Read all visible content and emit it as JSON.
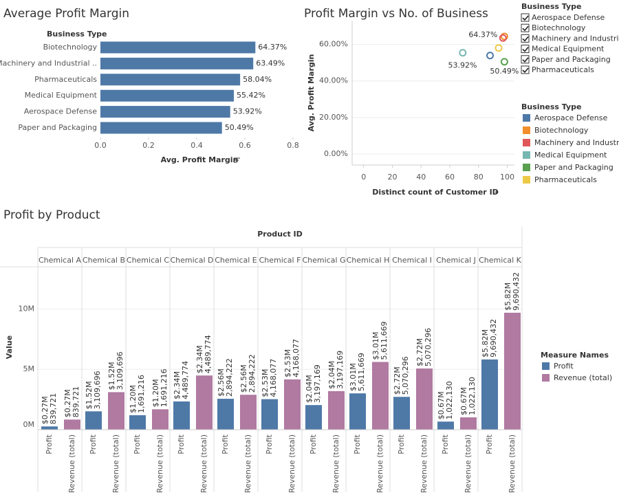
{
  "chart_data": [
    {
      "type": "bar",
      "orientation": "horizontal",
      "title": "Average Profit Margin",
      "row_header": "Business Type",
      "x_label": "Avg. Profit Margin",
      "categories": [
        "Biotechnology",
        "Machinery and Industrial ..",
        "Pharmaceuticals",
        "Medical Equipment",
        "Aerospace Defense",
        "Paper and Packaging"
      ],
      "values": [
        0.6437,
        0.6349,
        0.5804,
        0.5542,
        0.5392,
        0.5049
      ],
      "value_labels": [
        "64.37%",
        "63.49%",
        "58.04%",
        "55.42%",
        "53.92%",
        "50.49%"
      ],
      "color": "#4e79a7",
      "xlim": [
        0,
        0.82
      ],
      "xticks": [
        {
          "value": 0,
          "label": "0.0"
        },
        0.2,
        0.4,
        0.6,
        0.8
      ]
    },
    {
      "type": "scatter",
      "title": "Profit Margin vs No. of Business",
      "x_label": "Distinct count of Customer ID",
      "y_label": "Avg. Profit Margin",
      "legend_title": "Business Type",
      "series": [
        {
          "name": "Aerospace Defense",
          "color": "#4e79a7",
          "x": [
            88
          ],
          "values": [
            53.92
          ],
          "value_labels": [
            "53.92%"
          ]
        },
        {
          "name": "Biotechnology",
          "color": "#f28e2b",
          "x": [
            98
          ],
          "values": [
            64.37
          ],
          "value_labels": [
            "64.37%"
          ]
        },
        {
          "name": "Machinery and Industri...",
          "color": "#e15759",
          "x": [
            97
          ],
          "values": [
            63.49
          ],
          "value_labels": [
            null
          ]
        },
        {
          "name": "Medical Equipment",
          "color": "#76b7b2",
          "x": [
            69
          ],
          "values": [
            55.42
          ],
          "value_labels": [
            null
          ]
        },
        {
          "name": "Paper and Packaging",
          "color": "#59a14f",
          "x": [
            98
          ],
          "values": [
            50.49
          ],
          "value_labels": [
            "50.49%"
          ]
        },
        {
          "name": "Pharmaceuticals",
          "color": "#edc948",
          "x": [
            94
          ],
          "values": [
            58.04
          ],
          "value_labels": [
            null
          ]
        }
      ],
      "xlim": [
        -8,
        105
      ],
      "xticks": [
        0,
        20,
        40,
        60,
        80,
        100
      ],
      "ylim": [
        -6,
        73
      ],
      "yticks": [
        {
          "value": 0,
          "label": "0.00%"
        },
        {
          "value": 20,
          "label": "20.00%"
        },
        {
          "value": 40,
          "label": "40.00%"
        },
        {
          "value": 60,
          "label": "60.00%"
        }
      ],
      "grid": true,
      "filter": {
        "title": "Business Type",
        "items": [
          "Aerospace Defense",
          "Biotechnology",
          "Machinery and Industri..",
          "Medical Equipment",
          "Paper and Packaging",
          "Pharmaceuticals"
        ]
      }
    },
    {
      "type": "bar",
      "orientation": "vertical",
      "title": "Profit by Product",
      "column_header": "Product ID",
      "y_label": "Value",
      "legend_title": "Measure Names",
      "categories": [
        "Chemical A",
        "Chemical B",
        "Chemical C",
        "Chemical D",
        "Chemical E",
        "Chemical F",
        "Chemical G",
        "Chemical H",
        "Chemical I",
        "Chemical J",
        "Chemical K"
      ],
      "series": [
        {
          "name": "Profit",
          "color": "#4e79a7",
          "values": [
            270000,
            1520000,
            1200000,
            2340000,
            2560000,
            2530000,
            2040000,
            3010000,
            2720000,
            670000,
            5820000
          ],
          "value_labels": [
            "$0.27M",
            "$1.52M",
            "$1.20M",
            "$2.34M",
            "$2.56M",
            "$2.53M",
            "$2.04M",
            "$3.01M",
            "$2.72M",
            "$0.67M",
            "$5.82M"
          ]
        },
        {
          "name": "Revenue (total)",
          "color": "#b07aa1",
          "values": [
            839721,
            3109696,
            1691216,
            4489774,
            2894222,
            4168077,
            3197169,
            5611669,
            5070296,
            1022130,
            9690432
          ],
          "value_labels": [
            "839,721",
            "3,109,696",
            "1,691,216",
            "4,489,774",
            "2,894,222",
            "4,168,077",
            "3,197,169",
            "5,611,669",
            "5,070,296",
            "1,022,130",
            "9,690,432"
          ]
        }
      ],
      "ylim": [
        0,
        13500000
      ],
      "yticks": [
        {
          "value": 0,
          "label": "0M"
        },
        {
          "value": 5000000,
          "label": "5M"
        },
        {
          "value": 10000000,
          "label": "10M"
        }
      ],
      "grid": true
    }
  ]
}
